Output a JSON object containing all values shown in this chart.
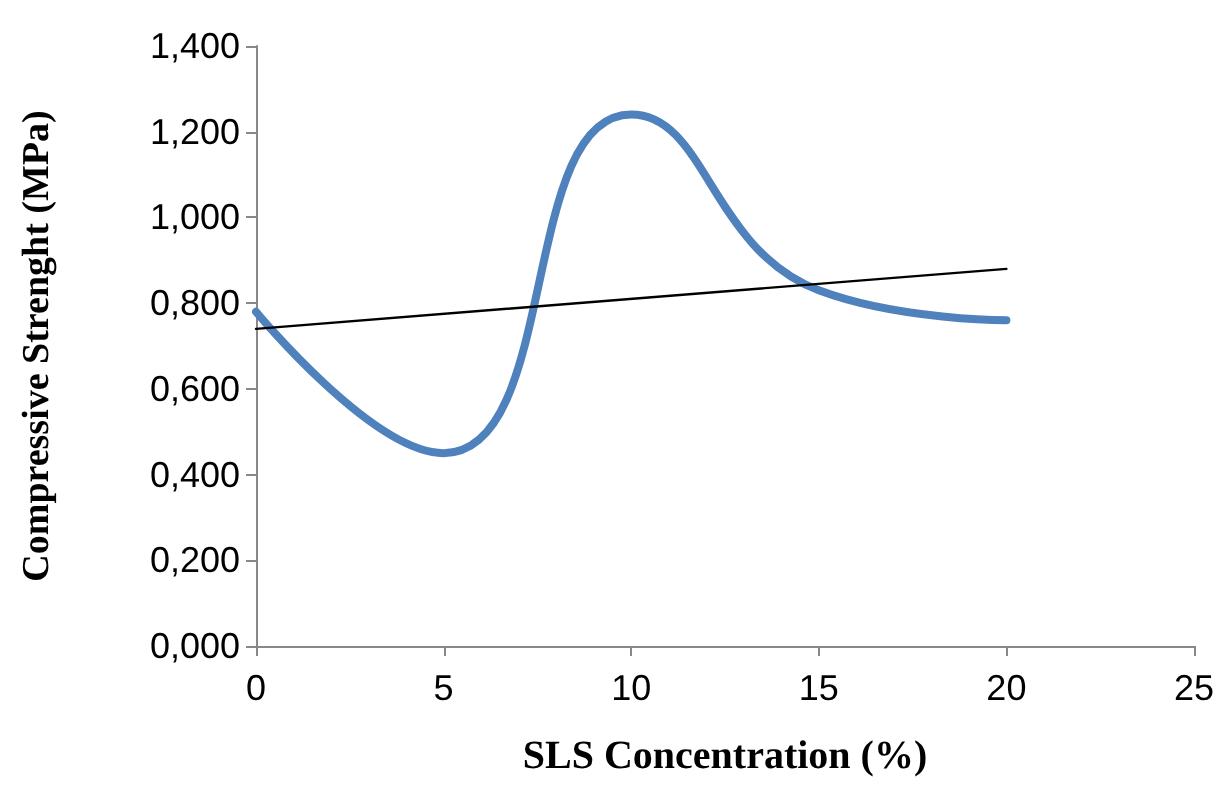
{
  "chart_data": {
    "type": "line",
    "xlabel": "SLS Concentration (%)",
    "ylabel": "Compressive Strenght (MPa)",
    "x": [
      0,
      5,
      10,
      15,
      20
    ],
    "series": [
      {
        "color": "#4f81bd",
        "values": [
          0.78,
          0.45,
          1.24,
          0.83,
          0.76
        ]
      },
      {
        "color": "#000000",
        "x": [
          0,
          20
        ],
        "values": [
          0.74,
          0.88
        ]
      }
    ],
    "xlim": [
      0,
      25
    ],
    "xticks": [
      0,
      5,
      10,
      15,
      20,
      25
    ],
    "ylim": [
      0,
      1.4
    ],
    "yticks": [
      {
        "value": 0,
        "label": "0,000"
      },
      {
        "value": 0.2,
        "label": "0,200"
      },
      {
        "value": 0.4,
        "label": "0,400"
      },
      {
        "value": 0.6,
        "label": "0,600"
      },
      {
        "value": 0.8,
        "label": "0,800"
      },
      {
        "value": 1,
        "label": "1,000"
      },
      {
        "value": 1.2,
        "label": "1,200"
      },
      {
        "value": 1.4,
        "label": "1,400"
      }
    ],
    "grid": false,
    "marker": "none",
    "line_style": "solid"
  }
}
